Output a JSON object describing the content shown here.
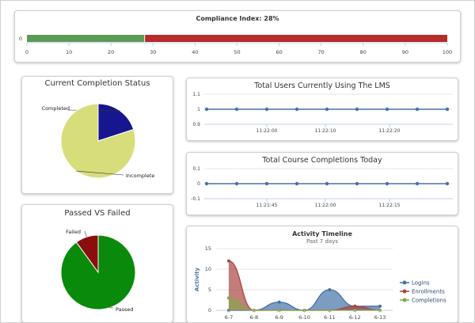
{
  "compliance": {
    "title": "Compliance Index: 28%",
    "category_label": "0",
    "value": 28,
    "max": 100,
    "ticks": [
      "0",
      "10",
      "20",
      "30",
      "40",
      "50",
      "60",
      "70",
      "80",
      "90",
      "100"
    ],
    "colors": {
      "filled": "#5a9b55",
      "remaining": "#b72b2b"
    }
  },
  "completion_status": {
    "title": "Current Completion Status",
    "slices": [
      {
        "label": "Completed",
        "value": 20,
        "color": "#16168f"
      },
      {
        "label": "Incomplete",
        "value": 80,
        "color": "#d8dd7c"
      }
    ]
  },
  "passed_failed": {
    "title": "Passed VS Failed",
    "slices": [
      {
        "label": "Failed",
        "value": 10,
        "color": "#8b0e0e"
      },
      {
        "label": "Passed",
        "value": 90,
        "color": "#0a8a0a"
      }
    ]
  },
  "users_lms": {
    "title": "Total Users Currently Using The LMS",
    "y_ticks": [
      "1.1",
      "1",
      "0.9"
    ],
    "x_ticks": [
      "11:22:00",
      "11:22:10",
      "11:22:20"
    ],
    "values": [
      1,
      1,
      1,
      1,
      1,
      1,
      1,
      1,
      1
    ],
    "color": "#4572a7"
  },
  "course_completions": {
    "title": "Total Course Completions Today",
    "y_ticks": [
      "0.1",
      "0",
      "-0.1"
    ],
    "x_ticks": [
      "11:21:45",
      "11:22:00",
      "11:22:15"
    ],
    "values": [
      0,
      0,
      0,
      0,
      0,
      0,
      0,
      0,
      0
    ],
    "color": "#4572a7"
  },
  "chart_data": {
    "type": "area",
    "title": "Activity Timeline",
    "subtitle": "Past 7 days",
    "ylabel": "Activity",
    "ylim": [
      0,
      15
    ],
    "y_ticks": [
      "15",
      "10",
      "5",
      "0"
    ],
    "categories": [
      "6-7",
      "6-8",
      "6-9",
      "6-10",
      "6-11",
      "6-12",
      "6-13"
    ],
    "series": [
      {
        "name": "Logins",
        "color": "#4572a7",
        "values": [
          0,
          0,
          2,
          0,
          5,
          1,
          1
        ]
      },
      {
        "name": "Enrollments",
        "color": "#aa4643",
        "values": [
          12,
          0,
          0,
          0,
          0,
          1,
          0
        ]
      },
      {
        "name": "Completions",
        "color": "#89a54e",
        "values": [
          3,
          0,
          0,
          0,
          0,
          0,
          0
        ]
      }
    ]
  }
}
